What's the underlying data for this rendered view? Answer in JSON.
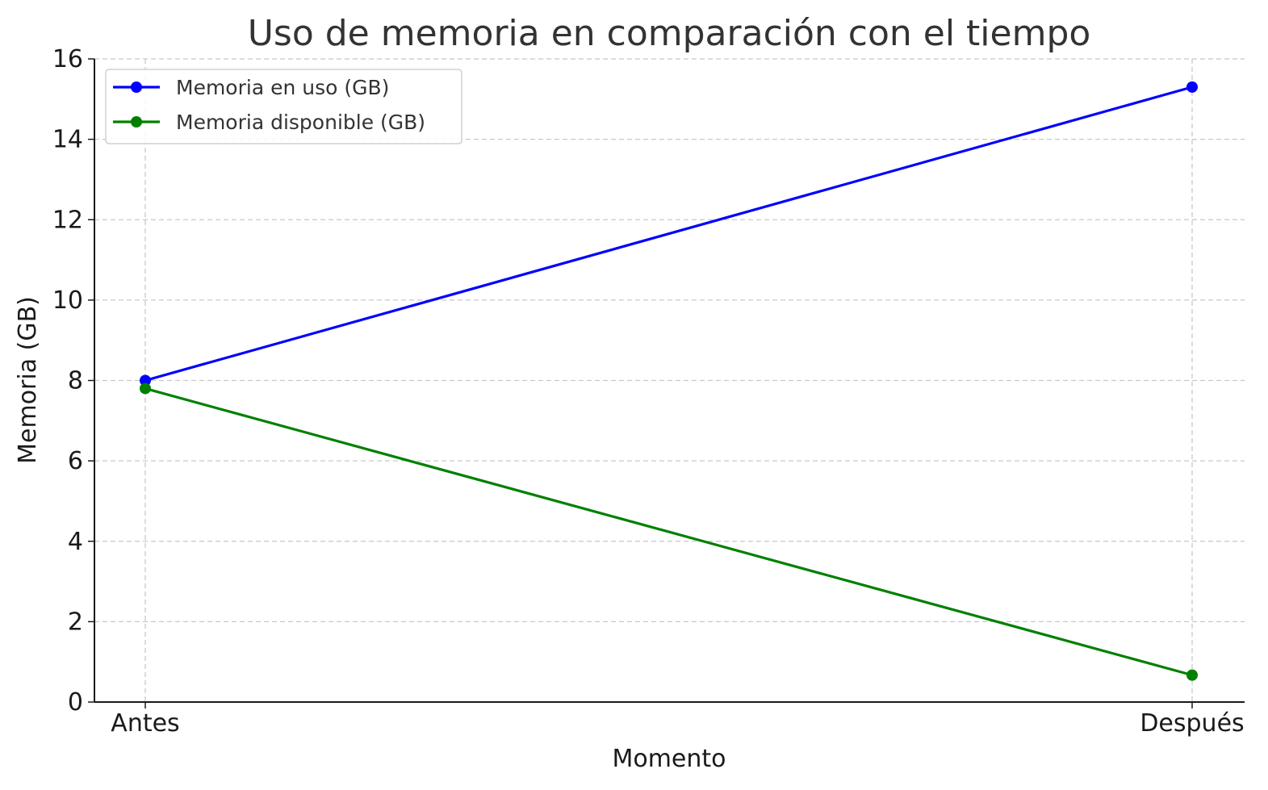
{
  "chart_data": {
    "type": "line",
    "title": "Uso de memoria en comparación con el tiempo",
    "xlabel": "Momento",
    "ylabel": "Memoria (GB)",
    "categories": [
      "Antes",
      "Después"
    ],
    "ylim": [
      0,
      16
    ],
    "yticks": [
      "0",
      "2",
      "4",
      "6",
      "8",
      "10",
      "12",
      "14",
      "16"
    ],
    "grid": true,
    "legend_position": "top-left",
    "series": [
      {
        "name": "Memoria en uso (GB)",
        "values": [
          8.0,
          15.3
        ],
        "color": "#0000ff",
        "marker": "circle"
      },
      {
        "name": "Memoria disponible (GB)",
        "values": [
          7.8,
          0.67
        ],
        "color": "#008000",
        "marker": "circle"
      }
    ]
  }
}
